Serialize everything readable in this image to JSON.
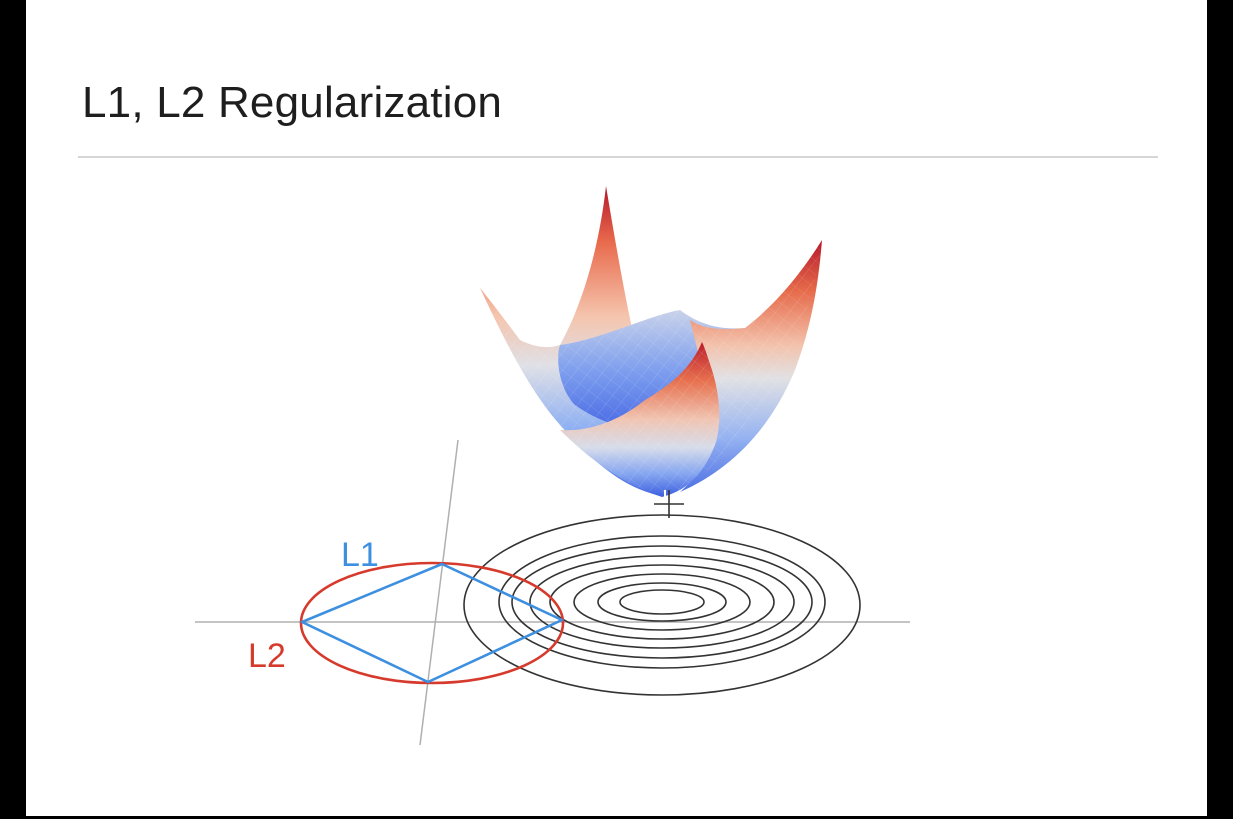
{
  "slide": {
    "title": "L1, L2 Regularization"
  },
  "diagram": {
    "l1_label": "L1",
    "l2_label": "L2",
    "colors": {
      "l1": "#3d8fe0",
      "l2": "#d63a2c",
      "contours": "#333333",
      "axes": "#b0b0b0",
      "surface_high": "#b5172a",
      "surface_mid": "#e4e0dc",
      "surface_low": "#3a5fe0"
    },
    "icons": {
      "cursor": "crosshair-cursor-icon"
    }
  }
}
